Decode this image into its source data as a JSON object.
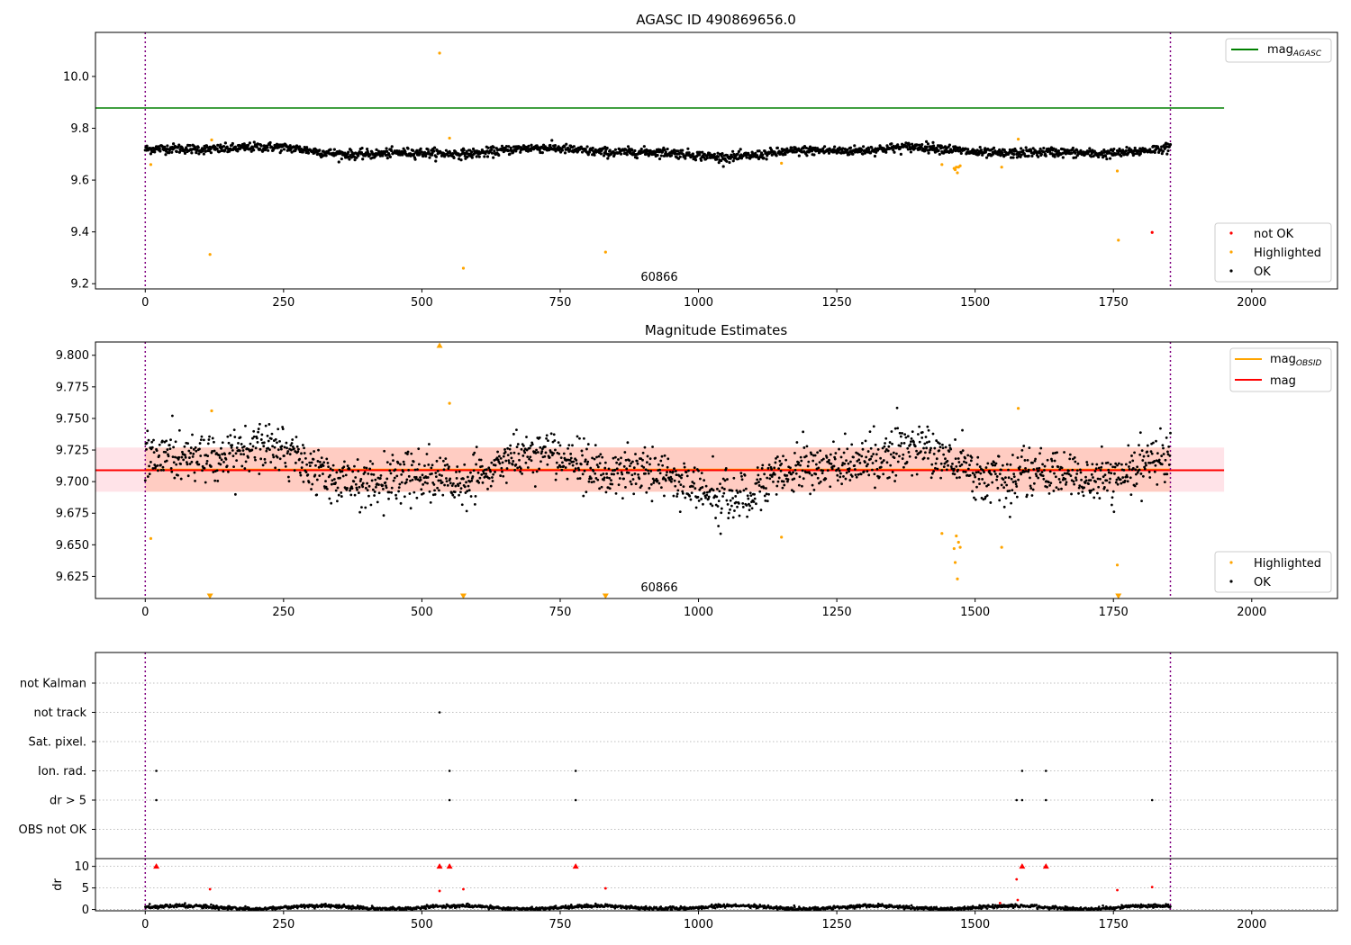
{
  "chart_data": [
    {
      "type": "scatter",
      "title": "AGASC ID 490869656.0",
      "xlim": [
        -90,
        2155
      ],
      "ylim": [
        9.18,
        10.17
      ],
      "xticks": [
        0,
        250,
        500,
        750,
        1000,
        1250,
        1500,
        1750,
        2000
      ],
      "yticks": [
        9.2,
        9.4,
        9.6,
        9.8,
        10.0
      ],
      "annotation": "60866",
      "vlines": [
        0,
        1853
      ],
      "hlines": [
        {
          "name": "mag_AGASC",
          "y": 9.878,
          "x": [
            -90,
            1950
          ],
          "color": "#008000"
        }
      ],
      "legend_line_labels": [
        "mag",
        "AGASC"
      ],
      "legend_scatter_labels": [
        "not OK",
        "Highlighted",
        "OK"
      ],
      "legend_placement": [
        "upper right",
        "lower right"
      ],
      "series": [
        {
          "name": "OK",
          "color": "#000000",
          "trend": {
            "x_range": [
              0,
              1853
            ],
            "mean": 9.71
          }
        },
        {
          "name": "Highlighted",
          "color": "#FFA500",
          "points": [
            [
              10,
              9.66
            ],
            [
              117,
              9.313
            ],
            [
              120,
              9.755
            ],
            [
              532,
              10.09
            ],
            [
              550,
              9.762
            ],
            [
              575,
              9.26
            ],
            [
              832,
              9.322
            ],
            [
              1150,
              9.665
            ],
            [
              1440,
              9.66
            ],
            [
              1462,
              9.645
            ],
            [
              1464,
              9.64
            ],
            [
              1466,
              9.65
            ],
            [
              1468,
              9.628
            ],
            [
              1470,
              9.65
            ],
            [
              1473,
              9.655
            ],
            [
              1548,
              9.65
            ],
            [
              1578,
              9.758
            ],
            [
              1757,
              9.635
            ],
            [
              1759,
              9.368
            ]
          ]
        },
        {
          "name": "not OK",
          "color": "#FF0000",
          "points": [
            [
              1820,
              9.398
            ]
          ]
        }
      ]
    },
    {
      "type": "scatter",
      "title": "Magnitude Estimates",
      "xlim": [
        -90,
        2155
      ],
      "ylim": [
        9.6075,
        9.8105
      ],
      "xticks": [
        0,
        250,
        500,
        750,
        1000,
        1250,
        1500,
        1750,
        2000
      ],
      "yticks": [
        9.625,
        9.65,
        9.675,
        9.7,
        9.725,
        9.75,
        9.775,
        9.8
      ],
      "annotation": "60866",
      "vlines": [
        0,
        1853
      ],
      "bands": [
        {
          "x": [
            -90,
            1950
          ],
          "y": [
            9.692,
            9.727
          ],
          "color": "#FFC0CB"
        },
        {
          "x": [
            0,
            1853
          ],
          "y": [
            9.692,
            9.727
          ],
          "color": "#FFA07A"
        }
      ],
      "hlines": [
        {
          "name": "mag_OBSID",
          "y": 9.7095,
          "x": [
            0,
            1853
          ],
          "color": "#FFA500"
        },
        {
          "name": "mag",
          "y": 9.709,
          "x": [
            -90,
            1950
          ],
          "color": "#FF0000"
        }
      ],
      "legend_line_labels": [
        [
          "mag",
          "OBSID"
        ],
        [
          "mag",
          ""
        ]
      ],
      "legend_scatter_labels": [
        "Highlighted",
        "OK"
      ],
      "legend_placement": [
        "upper right",
        "lower right"
      ],
      "series": [
        {
          "name": "OK",
          "color": "#000000",
          "trend": {
            "x_range": [
              0,
              1853
            ],
            "mean": 9.709
          }
        },
        {
          "name": "Highlighted",
          "color": "#FFA500",
          "points": [
            [
              10,
              9.655
            ],
            [
              120,
              9.756
            ],
            [
              550,
              9.762
            ],
            [
              1150,
              9.656
            ],
            [
              1440,
              9.659
            ],
            [
              1462,
              9.647
            ],
            [
              1464,
              9.636
            ],
            [
              1466,
              9.657
            ],
            [
              1468,
              9.623
            ],
            [
              1470,
              9.652
            ],
            [
              1473,
              9.648
            ],
            [
              1548,
              9.648
            ],
            [
              1578,
              9.758
            ],
            [
              1757,
              9.634
            ]
          ]
        },
        {
          "name": "Highlighted (clipped)",
          "color": "#FFA500",
          "markers": [
            {
              "x": 532,
              "dir": "up"
            },
            {
              "x": 117,
              "dir": "down"
            },
            {
              "x": 575,
              "dir": "down"
            },
            {
              "x": 832,
              "dir": "down"
            },
            {
              "x": 1759,
              "dir": "down"
            }
          ]
        }
      ]
    },
    {
      "type": "scatter",
      "title": "",
      "xlim": [
        -90,
        2155
      ],
      "categories": [
        "not Kalman",
        "not track",
        "Sat. pixel.",
        "Ion. rad.",
        "dr > 5",
        "OBS not OK"
      ],
      "vlines": [
        0,
        1853
      ],
      "series": [
        {
          "name": "not track",
          "color": "#000000",
          "x": [
            532
          ]
        },
        {
          "name": "Ion. rad.",
          "color": "#000000",
          "x": [
            20,
            550,
            778,
            1585,
            1628
          ]
        },
        {
          "name": "dr > 5",
          "color": "#000000",
          "x": [
            20,
            550,
            778,
            1575,
            1585,
            1628,
            1820
          ]
        }
      ]
    },
    {
      "type": "scatter",
      "title": "",
      "ylabel": "dr",
      "xlim": [
        -90,
        2155
      ],
      "ylim": [
        -0.3,
        11.8
      ],
      "xticks": [
        0,
        250,
        500,
        750,
        1000,
        1250,
        1500,
        1750,
        2000
      ],
      "yticks": [
        0,
        5,
        10
      ],
      "vlines": [
        0,
        1853
      ],
      "series": [
        {
          "name": "dr",
          "color": "#000000",
          "trend": {
            "x_range": [
              0,
              1853
            ],
            "mean": 0.5
          }
        },
        {
          "name": "dr (Highlighted)",
          "color": "#FF0000",
          "points": [
            [
              117,
              4.7
            ],
            [
              532,
              4.3
            ],
            [
              575,
              4.7
            ],
            [
              832,
              4.9
            ],
            [
              1575,
              7.0
            ],
            [
              1757,
              4.5
            ],
            [
              1820,
              5.2
            ],
            [
              1545,
              1.5
            ],
            [
              1577,
              2.2
            ]
          ]
        },
        {
          "name": "dr (clipped)",
          "color": "#FF0000",
          "markers": [
            {
              "x": 20,
              "dir": "up"
            },
            {
              "x": 532,
              "dir": "up"
            },
            {
              "x": 550,
              "dir": "up"
            },
            {
              "x": 778,
              "dir": "up"
            },
            {
              "x": 1585,
              "dir": "up"
            },
            {
              "x": 1628,
              "dir": "up"
            }
          ]
        }
      ]
    }
  ]
}
